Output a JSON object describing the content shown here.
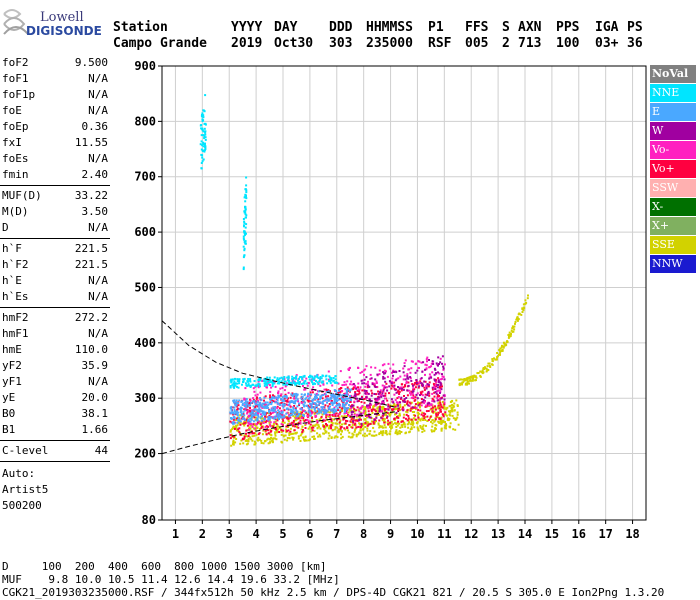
{
  "logo": {
    "line1": "Lowell",
    "line2": "DIGISONDE"
  },
  "header": {
    "row1": [
      "Station",
      "YYYY",
      "DAY",
      "DDD",
      "HHMMSS",
      "P1",
      "FFS",
      "S",
      "AXN",
      "PPS",
      "IGA",
      "PS"
    ],
    "row2": [
      "Campo Grande",
      "2019",
      "Oct30",
      "303",
      "235000",
      "RSF",
      "005",
      "2",
      "713",
      "100",
      "03+",
      "36"
    ]
  },
  "params": [
    {
      "label": "foF2",
      "value": "9.500"
    },
    {
      "label": "foF1",
      "value": "N/A"
    },
    {
      "label": "foF1p",
      "value": "N/A"
    },
    {
      "label": "foE",
      "value": "N/A"
    },
    {
      "label": "foEp",
      "value": "0.36"
    },
    {
      "label": "fxI",
      "value": "11.55"
    },
    {
      "label": "foEs",
      "value": "N/A"
    },
    {
      "label": "fmin",
      "value": "2.40"
    },
    {
      "label": "MUF(D)",
      "value": "33.22"
    },
    {
      "label": "M(D)",
      "value": "3.50"
    },
    {
      "label": "D",
      "value": "N/A"
    },
    {
      "label": "h`F",
      "value": "221.5"
    },
    {
      "label": "h`F2",
      "value": "221.5"
    },
    {
      "label": "h`E",
      "value": "N/A"
    },
    {
      "label": "h`Es",
      "value": "N/A"
    },
    {
      "label": "hmF2",
      "value": "272.2"
    },
    {
      "label": "hmF1",
      "value": "N/A"
    },
    {
      "label": "hmE",
      "value": "110.0"
    },
    {
      "label": "yF2",
      "value": "35.9"
    },
    {
      "label": "yF1",
      "value": "N/A"
    },
    {
      "label": "yE",
      "value": "20.0"
    },
    {
      "label": "B0",
      "value": "38.1"
    },
    {
      "label": "B1",
      "value": "1.66"
    },
    {
      "label": "C-level",
      "value": "44"
    }
  ],
  "auto": {
    "line1": "Auto:",
    "line2": "Artist5",
    "line3": "500200"
  },
  "legend": [
    {
      "label": "NoVal",
      "color": "#808080"
    },
    {
      "label": "NNE",
      "color": "#00e5ff"
    },
    {
      "label": "E",
      "color": "#4aa8ff"
    },
    {
      "label": "W",
      "color": "#a000a0"
    },
    {
      "label": "Vo-",
      "color": "#ff20c0"
    },
    {
      "label": "Vo+",
      "color": "#ff0040"
    },
    {
      "label": "SSW",
      "color": "#ffb0b0"
    },
    {
      "label": "X-",
      "color": "#007000"
    },
    {
      "label": "X+",
      "color": "#80b060"
    },
    {
      "label": "SSE",
      "color": "#d2d200"
    },
    {
      "label": "NNW",
      "color": "#1a1ad0"
    }
  ],
  "bottom": {
    "d_row": "D     100  200  400  600  800 1000 1500 3000 [km]",
    "muf_row": "MUF    9.8 10.0 10.5 11.4 12.6 14.4 19.6 33.2 [MHz]",
    "file_row": "CGK21_2019303235000.RSF / 344fx512h 50 kHz 2.5 km / DPS-4D CGK21 821 / 20.5 S 305.0 E Ion2Png 1.3.20"
  },
  "chart_data": {
    "type": "scatter",
    "x_range": [
      0.5,
      18.5
    ],
    "y_range": [
      80,
      900
    ],
    "x_ticks": [
      1,
      2,
      3,
      4,
      5,
      6,
      7,
      8,
      9,
      10,
      11,
      12,
      13,
      14,
      15,
      16,
      17,
      18
    ],
    "y_ticks": [
      80,
      200,
      300,
      400,
      500,
      600,
      700,
      800,
      900
    ],
    "grid": true,
    "echo_clusters": [
      {
        "name": "SSE",
        "color": "#d2d200",
        "f": [
          3.0,
          11.5
        ],
        "h": [
          215,
          300
        ],
        "n": 900
      },
      {
        "name": "Vo+",
        "color": "#ff0040",
        "f": [
          3.0,
          11.0
        ],
        "h": [
          225,
          340
        ],
        "n": 700
      },
      {
        "name": "Vo-",
        "color": "#ff20c0",
        "f": [
          3.5,
          11.0
        ],
        "h": [
          240,
          380
        ],
        "n": 450
      },
      {
        "name": "E",
        "color": "#4aa8ff",
        "f": [
          3.0,
          7.5
        ],
        "h": [
          255,
          320
        ],
        "n": 500
      },
      {
        "name": "NNE",
        "color": "#00e5ff",
        "f": [
          3.0,
          7.0
        ],
        "h": [
          320,
          345
        ],
        "n": 220
      },
      {
        "name": "W",
        "color": "#a000a0",
        "f": [
          7.5,
          11.0
        ],
        "h": [
          250,
          380
        ],
        "n": 200
      },
      {
        "name": "SSE-trail",
        "color": "#d2d200",
        "f": [
          11.5,
          14.1
        ],
        "h": [
          330,
          490
        ],
        "n": 160
      },
      {
        "name": "NNE-vert",
        "color": "#00e5ff",
        "f": [
          1.9,
          2.1
        ],
        "h": [
          700,
          860
        ],
        "n": 60
      },
      {
        "name": "NNE-vert2",
        "color": "#00e5ff",
        "f": [
          3.5,
          3.6
        ],
        "h": [
          520,
          710
        ],
        "n": 60
      }
    ],
    "trace_upper": [
      [
        0.5,
        440
      ],
      [
        1.5,
        395
      ],
      [
        2.5,
        365
      ],
      [
        3.5,
        345
      ],
      [
        4.5,
        333
      ],
      [
        5.5,
        322
      ],
      [
        6.5,
        312
      ],
      [
        7.5,
        302
      ],
      [
        8.5,
        292
      ],
      [
        9.3,
        282
      ]
    ],
    "trace_lower": [
      [
        0.5,
        200
      ],
      [
        1.5,
        213
      ],
      [
        2.5,
        225
      ],
      [
        3.5,
        236
      ],
      [
        4.5,
        245
      ],
      [
        5.5,
        253
      ],
      [
        6.5,
        260
      ],
      [
        7.5,
        266
      ],
      [
        8.5,
        272
      ],
      [
        9.3,
        276
      ]
    ]
  }
}
